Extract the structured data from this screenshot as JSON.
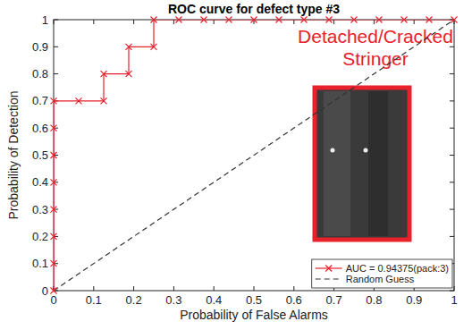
{
  "chart_data": {
    "type": "line",
    "title": "ROC curve for defect type #3",
    "x_label": "Probability of False Alarms",
    "y_label": "Probability of Detection",
    "annotation": "Detached/Cracked Stringer",
    "xlim": [
      0,
      1
    ],
    "ylim": [
      0,
      1
    ],
    "xticks": [
      0,
      0.1,
      0.2,
      0.3,
      0.4,
      0.5,
      0.6,
      0.7,
      0.8,
      0.9,
      1
    ],
    "yticks": [
      0,
      0.1,
      0.2,
      0.3,
      0.4,
      0.5,
      0.6,
      0.7,
      0.8,
      0.9,
      1
    ],
    "grid": false,
    "legend": "lower right",
    "series": [
      {
        "name": "AUC = 0.94375(pack:3)",
        "color": "#e8212b",
        "marker": "x",
        "line_style": "solid",
        "x": [
          0,
          0,
          0,
          0,
          0,
          0,
          0,
          0,
          0.0625,
          0.125,
          0.125,
          0.1875,
          0.1875,
          0.25,
          0.25,
          0.3125,
          0.375,
          0.4375,
          0.5,
          0.5625,
          0.625,
          0.6875,
          0.75,
          0.8125,
          0.875,
          0.9375,
          1
        ],
        "values": [
          0,
          0.1,
          0.2,
          0.3,
          0.4,
          0.5,
          0.6,
          0.7,
          0.7,
          0.7,
          0.8,
          0.8,
          0.9,
          0.9,
          1,
          1,
          1,
          1,
          1,
          1,
          1,
          1,
          1,
          1,
          1,
          1,
          1
        ]
      },
      {
        "name": "Random Guess",
        "color": "#333333",
        "marker": "none",
        "line_style": "dashed",
        "x": [
          0,
          1
        ],
        "values": [
          0,
          1
        ]
      }
    ]
  }
}
